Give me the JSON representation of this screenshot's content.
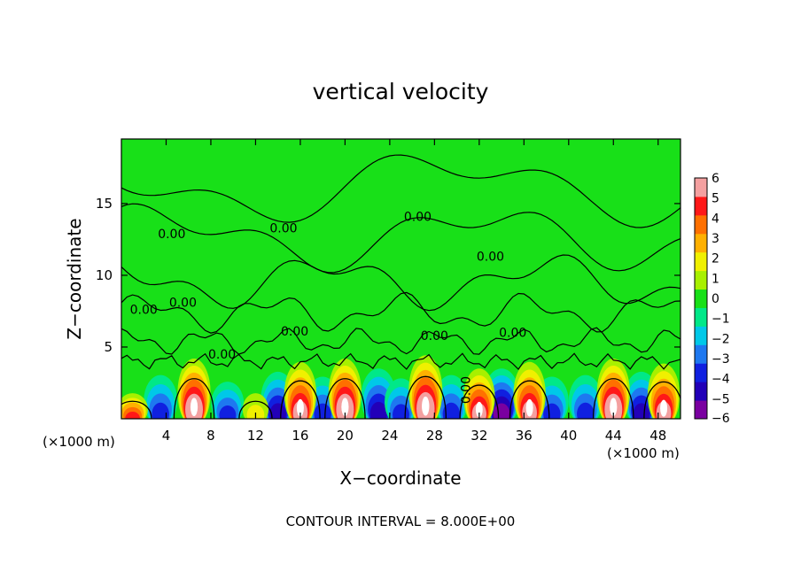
{
  "chart_data": {
    "type": "heatmap",
    "title": "vertical velocity",
    "xlabel": "X−coordinate",
    "ylabel": "Z−coordinate",
    "x_unit_left": "(×1000 m)",
    "x_unit_right": "(×1000 m)",
    "xlim": [
      0,
      50
    ],
    "ylim": [
      0,
      19.5
    ],
    "x_ticks": [
      4,
      8,
      12,
      16,
      20,
      24,
      28,
      32,
      36,
      40,
      44,
      48
    ],
    "x_tick_labels": [
      "4",
      "8",
      "12",
      "16",
      "20",
      "24",
      "28",
      "32",
      "36",
      "40",
      "44",
      "48"
    ],
    "y_ticks": [
      5,
      10,
      15
    ],
    "y_tick_labels": [
      "5",
      "10",
      "15"
    ],
    "colorbar": {
      "min": -6,
      "max": 6,
      "ticks": [
        6,
        5,
        4,
        3,
        2,
        1,
        0,
        -1,
        -2,
        -3,
        -4,
        -5,
        -6
      ],
      "tick_labels": [
        "6",
        "5",
        "4",
        "3",
        "2",
        "1",
        "0",
        "−1",
        "−2",
        "−3",
        "−4",
        "−5",
        "−6"
      ],
      "colors": [
        "#7a00a0",
        "#2200b8",
        "#1020e0",
        "#1e78f0",
        "#00c8e8",
        "#00e888",
        "#18e018",
        "#a8f000",
        "#f0f000",
        "#ffb000",
        "#ff7000",
        "#ff1818",
        "#f4a0a0"
      ]
    },
    "cells": {
      "updrafts": [
        {
          "x": 1.0,
          "w": 4.5,
          "z_top": 1.5
        },
        {
          "x": 6.5,
          "w": 6.0,
          "z_top": 3.6
        },
        {
          "x": 12.0,
          "w": 1.5,
          "z_top": 1.5
        },
        {
          "x": 16.0,
          "w": 5.5,
          "z_top": 3.4
        },
        {
          "x": 20.0,
          "w": 6.0,
          "z_top": 3.6
        },
        {
          "x": 27.2,
          "w": 6.5,
          "z_top": 3.8
        },
        {
          "x": 32.0,
          "w": 5.0,
          "z_top": 3.0
        },
        {
          "x": 36.5,
          "w": 5.5,
          "z_top": 3.4
        },
        {
          "x": 44.0,
          "w": 6.0,
          "z_top": 3.6
        },
        {
          "x": 48.5,
          "w": 5.5,
          "z_top": 3.3
        }
      ],
      "downdrafts": [
        {
          "x": 3.5,
          "w": -3.5,
          "z_top": 2.6
        },
        {
          "x": 9.5,
          "w": -3.0,
          "z_top": 2.2
        },
        {
          "x": 14.0,
          "w": -4.0,
          "z_top": 2.8
        },
        {
          "x": 18.0,
          "w": -3.5,
          "z_top": 2.5
        },
        {
          "x": 23.0,
          "w": -4.5,
          "z_top": 3.0
        },
        {
          "x": 25.0,
          "w": -3.0,
          "z_top": 2.4
        },
        {
          "x": 29.5,
          "w": -3.5,
          "z_top": 2.6
        },
        {
          "x": 34.0,
          "w": -5.0,
          "z_top": 3.0
        },
        {
          "x": 38.5,
          "w": -3.5,
          "z_top": 2.5
        },
        {
          "x": 41.5,
          "w": -3.5,
          "z_top": 2.6
        },
        {
          "x": 46.5,
          "w": -4.0,
          "z_top": 2.8
        }
      ]
    },
    "contour_labels": [
      {
        "text": "0.00",
        "x": 4.5,
        "z": 12.6
      },
      {
        "text": "0.00",
        "x": 14.5,
        "z": 13.0
      },
      {
        "text": "0.00",
        "x": 26.5,
        "z": 13.8
      },
      {
        "text": "0.00",
        "x": 33.0,
        "z": 11.0
      },
      {
        "text": "0.00",
        "x": 2.0,
        "z": 7.3
      },
      {
        "text": "0.00",
        "x": 5.5,
        "z": 7.8
      },
      {
        "text": "0.00",
        "x": 15.5,
        "z": 5.8
      },
      {
        "text": "0.00",
        "x": 9.0,
        "z": 4.2
      },
      {
        "text": "0.00",
        "x": 28.0,
        "z": 5.5
      },
      {
        "text": "0.00",
        "x": 35.0,
        "z": 5.7
      },
      {
        "text": "0.00",
        "x": 31.2,
        "z": 2.0
      }
    ]
  },
  "footer": {
    "contour_interval": "CONTOUR INTERVAL = 8.000E+00"
  }
}
